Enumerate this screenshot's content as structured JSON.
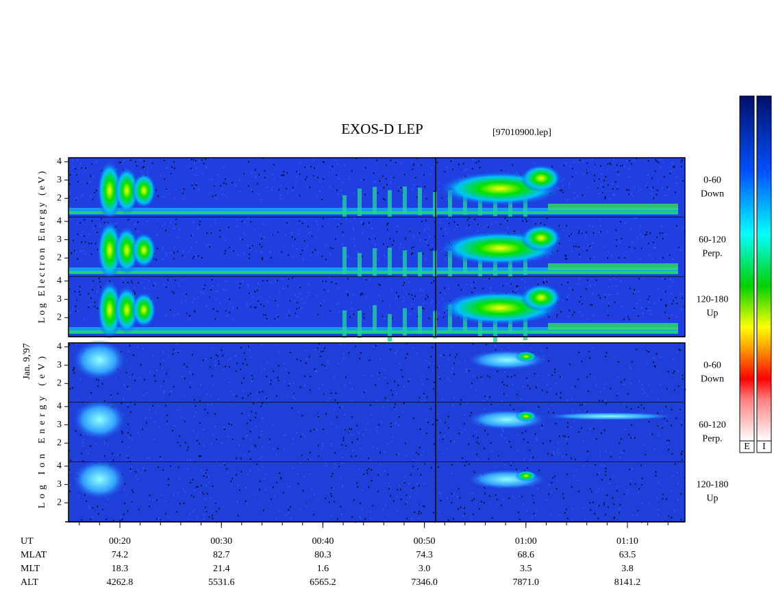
{
  "chart_data": {
    "type": "spectrogram",
    "title": "EXOS-D LEP",
    "file": "[97010900.lep]",
    "date": "Jan. 9,'97",
    "groups": [
      {
        "ylabel": "Log Electron Energy (eV)",
        "panels": [
          {
            "label": [
              "0-60",
              "Down"
            ],
            "ylim": [
              0.96,
              4.22
            ],
            "yticks": [
              2,
              3,
              4
            ]
          },
          {
            "label": [
              "60-120",
              "Perp."
            ],
            "ylim": [
              0.96,
              4.22
            ],
            "yticks": [
              2,
              3,
              4
            ]
          },
          {
            "label": [
              "120-180",
              "Up"
            ],
            "ylim": [
              0.96,
              4.22
            ],
            "yticks": [
              2,
              3,
              4
            ]
          }
        ]
      },
      {
        "ylabel": "Log Ion Energy (eV)",
        "panels": [
          {
            "label": [
              "0-60",
              "Down"
            ],
            "ylim": [
              0.96,
              4.22
            ],
            "yticks": [
              2,
              3,
              4
            ]
          },
          {
            "label": [
              "60-120",
              "Perp."
            ],
            "ylim": [
              0.96,
              4.22
            ],
            "yticks": [
              2,
              3,
              4
            ]
          },
          {
            "label": [
              "120-180",
              "Up"
            ],
            "ylim": [
              0.96,
              4.22
            ],
            "yticks": [
              2,
              3,
              4
            ]
          }
        ]
      }
    ],
    "colorbars": [
      "E",
      "I"
    ],
    "ephemeris": [
      {
        "name": "UT",
        "values": [
          "00:20",
          "00:30",
          "00:40",
          "00:50",
          "01:00",
          "01:10"
        ]
      },
      {
        "name": "MLAT",
        "values": [
          "74.2",
          "82.7",
          "80.3",
          "74.3",
          "68.6",
          "63.5"
        ]
      },
      {
        "name": "MLT",
        "values": [
          "18.3",
          "21.4",
          "1.6",
          "3.0",
          "3.5",
          "3.8"
        ]
      },
      {
        "name": "ALT",
        "values": [
          "4262.8",
          "5531.6",
          "6565.2",
          "7346.0",
          "7871.0",
          "8141.2"
        ]
      }
    ]
  }
}
